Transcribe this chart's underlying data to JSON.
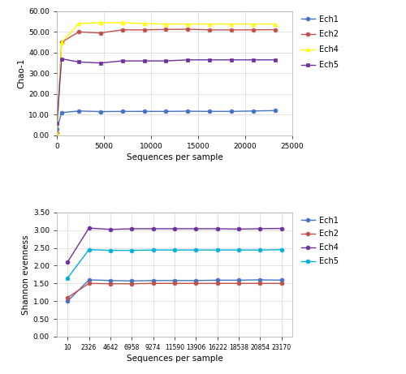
{
  "chao1": {
    "x": [
      10,
      500,
      2326,
      4642,
      6958,
      9274,
      11590,
      13906,
      16222,
      18538,
      20854,
      23170
    ],
    "Ech1": [
      3.0,
      11.0,
      11.8,
      11.5,
      11.6,
      11.6,
      11.6,
      11.7,
      11.6,
      11.6,
      11.8,
      12.0
    ],
    "Ech2": [
      1.0,
      45.0,
      50.0,
      49.5,
      51.0,
      51.0,
      51.2,
      51.3,
      51.0,
      51.0,
      51.0,
      51.1
    ],
    "Ech4": [
      1.0,
      45.0,
      54.0,
      54.5,
      54.5,
      54.0,
      53.8,
      53.8,
      53.8,
      53.8,
      53.8,
      53.8
    ],
    "Ech5": [
      6.0,
      37.0,
      35.5,
      35.0,
      36.0,
      36.0,
      36.0,
      36.5,
      36.5,
      36.5,
      36.5,
      36.5
    ],
    "colors": {
      "Ech1": "#4472C4",
      "Ech2": "#C0504D",
      "Ech4": "#FFFF00",
      "Ech5": "#7030A0"
    },
    "markers": {
      "Ech1": "o",
      "Ech2": "o",
      "Ech4": "^",
      "Ech5": "s"
    },
    "ylabel": "Chao-1",
    "xlabel": "Sequences per sample",
    "ylim": [
      0.0,
      60.0
    ],
    "yticks": [
      0.0,
      10.0,
      20.0,
      30.0,
      40.0,
      50.0,
      60.0
    ],
    "xlim": [
      0,
      25000
    ],
    "xticks": [
      0,
      5000,
      10000,
      15000,
      20000,
      25000
    ]
  },
  "shannon": {
    "x": [
      10,
      2326,
      4642,
      6958,
      9274,
      11590,
      13906,
      16222,
      18538,
      20854,
      23170
    ],
    "Ech1": [
      1.0,
      1.6,
      1.58,
      1.57,
      1.58,
      1.58,
      1.58,
      1.59,
      1.59,
      1.6,
      1.59
    ],
    "Ech2": [
      1.1,
      1.5,
      1.49,
      1.49,
      1.5,
      1.5,
      1.5,
      1.5,
      1.5,
      1.5,
      1.5
    ],
    "Ech4": [
      2.1,
      3.06,
      3.02,
      3.04,
      3.04,
      3.04,
      3.04,
      3.04,
      3.03,
      3.04,
      3.05
    ],
    "Ech5": [
      1.65,
      2.45,
      2.43,
      2.43,
      2.44,
      2.44,
      2.44,
      2.44,
      2.44,
      2.44,
      2.45
    ],
    "colors": {
      "Ech1": "#4472C4",
      "Ech2": "#C0504D",
      "Ech4": "#7030A0",
      "Ech5": "#00B0D8"
    },
    "markers": {
      "Ech1": "o",
      "Ech2": "o",
      "Ech4": "o",
      "Ech5": "o"
    },
    "ylabel": "Shannon evenness",
    "xlabel": "Sequences per sample",
    "ylim": [
      0.0,
      3.5
    ],
    "yticks": [
      0.0,
      0.5,
      1.0,
      1.5,
      2.0,
      2.5,
      3.0,
      3.5
    ],
    "xlim_labels": [
      "10",
      "2326",
      "4642",
      "6958",
      "9274",
      "11590",
      "13906",
      "16222",
      "18538",
      "20854",
      "23170"
    ]
  },
  "bg_color": "#FFFFFF",
  "grid_color": "#D8D8D8"
}
